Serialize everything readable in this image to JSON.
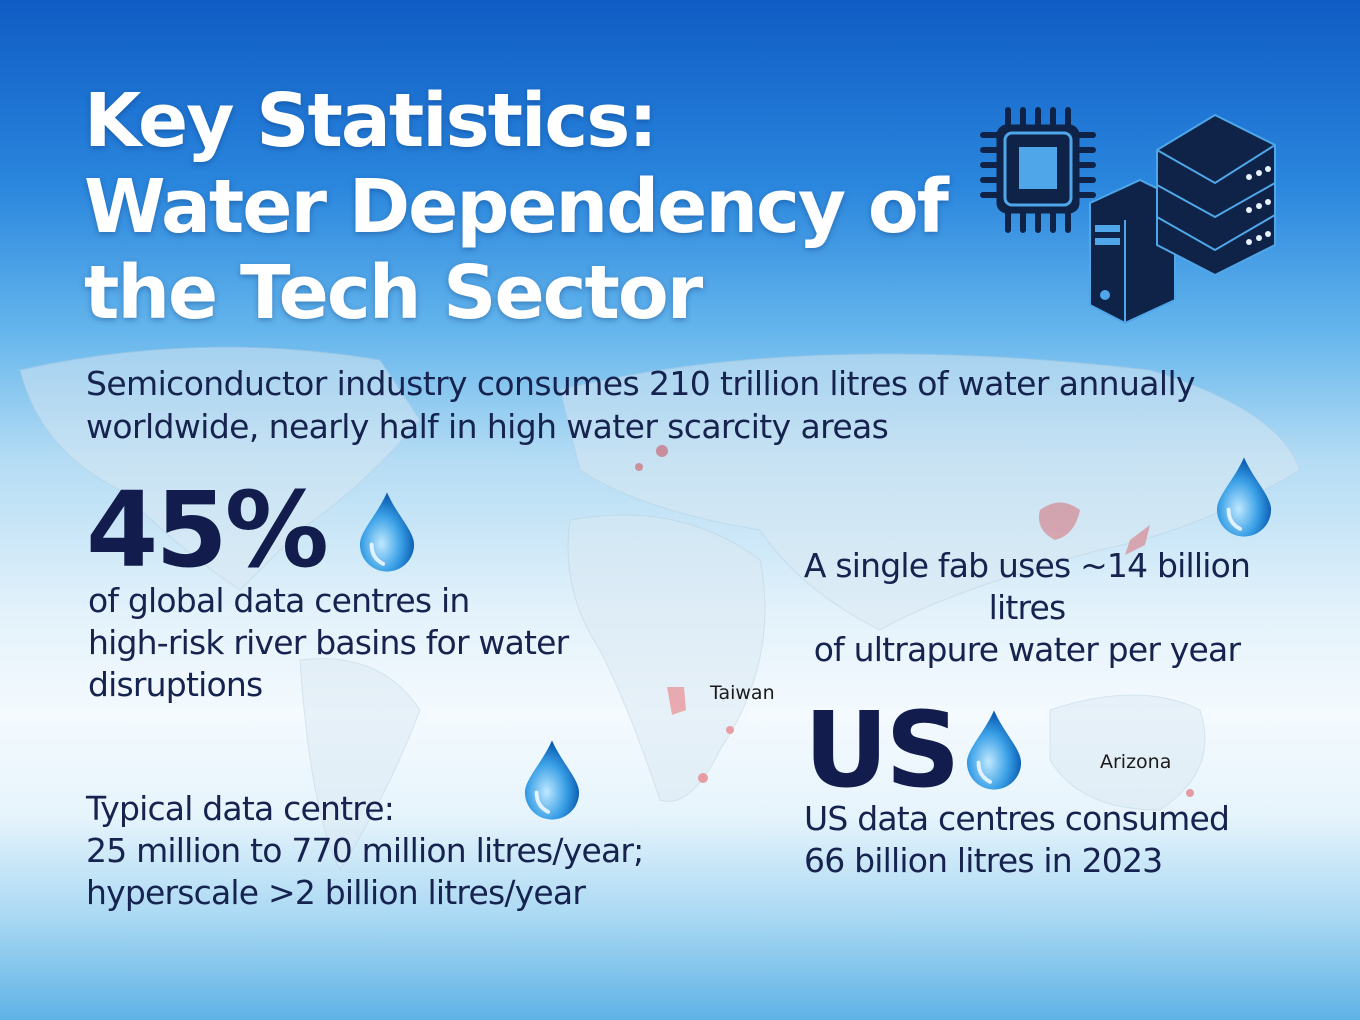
{
  "title": {
    "line1": "Key Statistics:",
    "line2": "Water Dependency of",
    "line3": "the Tech Sector"
  },
  "subtitle": {
    "line1": "Semiconductor industry consumes 210 trillion litres of water annually",
    "line2": "worldwide, nearly half in high water scarcity areas"
  },
  "stats": {
    "datacentres_risk": {
      "value": "45%",
      "line1": "of global data centres in",
      "line2": "high-risk river basins for water",
      "line3": "disruptions"
    },
    "fab": {
      "line1": "A single fab uses ~14 billion litres",
      "line2": "of ultrapure water per year"
    },
    "typical": {
      "line1": "Typical data centre:",
      "line2": "25 million to 770 million litres/year;",
      "line3": "hyperscale >2 billion litres/year"
    },
    "us": {
      "value": "US",
      "line1": "US data centres consumed",
      "line2": "66 billion litres in 2023"
    }
  },
  "map_labels": {
    "taiwan": "Taiwan",
    "arizona": "Arizona"
  },
  "icons": [
    "microchip-icon",
    "server-tower-icon",
    "server-stack-icon",
    "water-drop-icon"
  ],
  "colors": {
    "navy": "#16234f",
    "hotspot": "#e0454a",
    "sky": "#2a86dd"
  }
}
